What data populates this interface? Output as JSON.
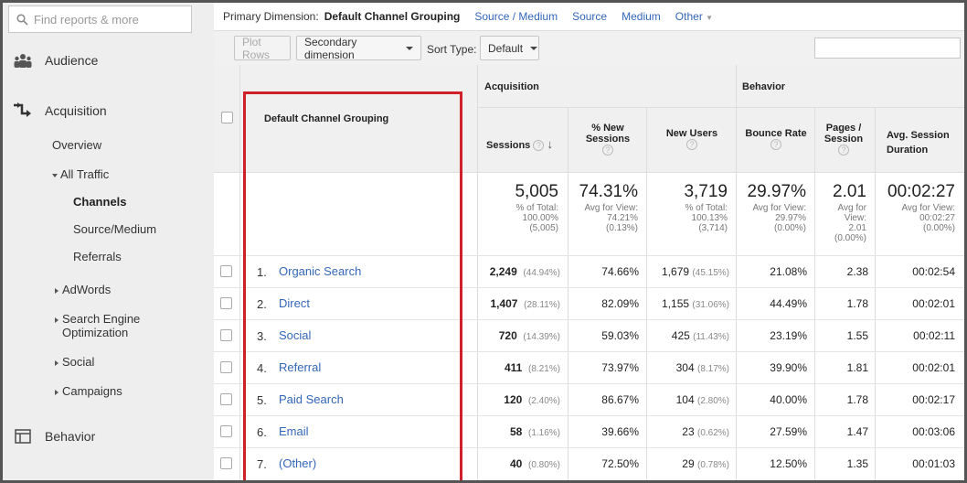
{
  "sidebar": {
    "search_placeholder": "Find reports & more",
    "audience": "Audience",
    "acquisition": "Acquisition",
    "overview": "Overview",
    "all_traffic": "All Traffic",
    "channels": "Channels",
    "source_medium": "Source/Medium",
    "referrals": "Referrals",
    "adwords": "AdWords",
    "seo_line1": "Search Engine",
    "seo_line2": "Optimization",
    "social": "Social",
    "campaigns": "Campaigns",
    "behavior": "Behavior"
  },
  "primary_dimension": {
    "label": "Primary Dimension:",
    "current": "Default Channel Grouping",
    "links": [
      "Source / Medium",
      "Source",
      "Medium"
    ],
    "other": "Other"
  },
  "toolbar": {
    "plot_rows": "Plot Rows",
    "secondary_dimension": "Secondary dimension",
    "sort_type_label": "Sort Type:",
    "sort_type_value": "Default"
  },
  "table": {
    "group_acquisition": "Acquisition",
    "group_behavior": "Behavior",
    "dim_header": "Default Channel Grouping",
    "col_sessions": "Sessions",
    "col_new_sessions": "% New Sessions",
    "col_new_users": "New Users",
    "col_bounce": "Bounce Rate",
    "col_pages": "Pages / Session",
    "col_duration": "Avg. Session Duration",
    "totals": {
      "sessions": "5,005",
      "sessions_sub": [
        "% of Total:",
        "100.00%",
        "(5,005)"
      ],
      "new_sessions": "74.31%",
      "new_sessions_sub": [
        "Avg for View:",
        "74.21%",
        "(0.13%)"
      ],
      "new_users": "3,719",
      "new_users_sub": [
        "% of Total:",
        "100.13%",
        "(3,714)"
      ],
      "bounce": "29.97%",
      "bounce_sub": [
        "Avg for View:",
        "29.97%",
        "(0.00%)"
      ],
      "pages": "2.01",
      "pages_sub": [
        "Avg for",
        "View:",
        "2.01",
        "(0.00%)"
      ],
      "duration": "00:02:27",
      "duration_sub": [
        "Avg for View:",
        "00:02:27",
        "(0.00%)"
      ]
    },
    "rows": [
      {
        "num": "1.",
        "name": "Organic Search",
        "sessions": "2,249",
        "sessions_pct": "(44.94%)",
        "new_sessions": "74.66%",
        "new_users": "1,679",
        "new_users_pct": "(45.15%)",
        "bounce": "21.08%",
        "pages": "2.38",
        "duration": "00:02:54"
      },
      {
        "num": "2.",
        "name": "Direct",
        "sessions": "1,407",
        "sessions_pct": "(28.11%)",
        "new_sessions": "82.09%",
        "new_users": "1,155",
        "new_users_pct": "(31.06%)",
        "bounce": "44.49%",
        "pages": "1.78",
        "duration": "00:02:01"
      },
      {
        "num": "3.",
        "name": "Social",
        "sessions": "720",
        "sessions_pct": "(14.39%)",
        "new_sessions": "59.03%",
        "new_users": "425",
        "new_users_pct": "(11.43%)",
        "bounce": "23.19%",
        "pages": "1.55",
        "duration": "00:02:11"
      },
      {
        "num": "4.",
        "name": "Referral",
        "sessions": "411",
        "sessions_pct": "(8.21%)",
        "new_sessions": "73.97%",
        "new_users": "304",
        "new_users_pct": "(8.17%)",
        "bounce": "39.90%",
        "pages": "1.81",
        "duration": "00:02:01"
      },
      {
        "num": "5.",
        "name": "Paid Search",
        "sessions": "120",
        "sessions_pct": "(2.40%)",
        "new_sessions": "86.67%",
        "new_users": "104",
        "new_users_pct": "(2.80%)",
        "bounce": "40.00%",
        "pages": "1.78",
        "duration": "00:02:17"
      },
      {
        "num": "6.",
        "name": "Email",
        "sessions": "58",
        "sessions_pct": "(1.16%)",
        "new_sessions": "39.66%",
        "new_users": "23",
        "new_users_pct": "(0.62%)",
        "bounce": "27.59%",
        "pages": "1.47",
        "duration": "00:03:06"
      },
      {
        "num": "7.",
        "name": "(Other)",
        "sessions": "40",
        "sessions_pct": "(0.80%)",
        "new_sessions": "72.50%",
        "new_users": "29",
        "new_users_pct": "(0.78%)",
        "bounce": "12.50%",
        "pages": "1.35",
        "duration": "00:01:03"
      }
    ]
  },
  "colors": {
    "link": "#3367b8",
    "highlight_box": "#d0202a",
    "sidebar_bg": "#eeeeee"
  }
}
